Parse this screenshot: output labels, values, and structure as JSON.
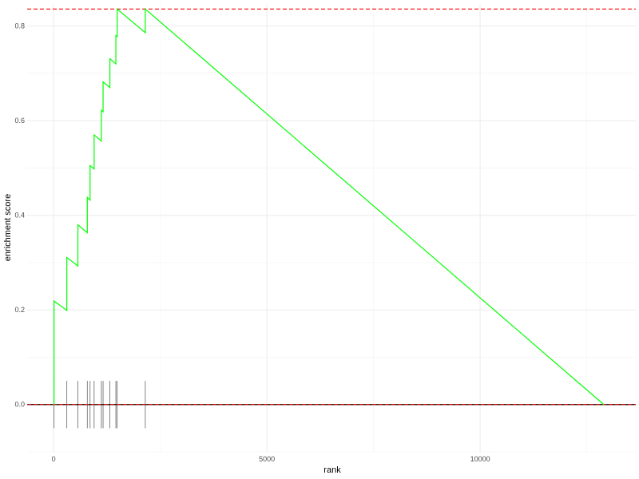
{
  "chart_data": {
    "type": "line",
    "title": "",
    "xlabel": "rank",
    "ylabel": "enrichment score",
    "xlim": [
      -620,
      13650
    ],
    "ylim": [
      -0.1,
      0.845
    ],
    "x_ticks": [
      {
        "value": 0,
        "label": "0"
      },
      {
        "value": 5000,
        "label": "5000"
      },
      {
        "value": 10000,
        "label": "10000"
      }
    ],
    "y_ticks": [
      {
        "value": 0.0,
        "label": "0.0"
      },
      {
        "value": 0.2,
        "label": "0.2"
      },
      {
        "value": 0.4,
        "label": "0.4"
      },
      {
        "value": 0.6,
        "label": "0.6"
      },
      {
        "value": 0.8,
        "label": "0.8"
      }
    ],
    "grid": true,
    "series": [
      {
        "color": "#00ff00",
        "points": [
          [
            0,
            0
          ],
          [
            10,
            0
          ],
          [
            10,
            0.219
          ],
          [
            310,
            0.199
          ],
          [
            310,
            0.311
          ],
          [
            570,
            0.293
          ],
          [
            570,
            0.38
          ],
          [
            790,
            0.363
          ],
          [
            790,
            0.438
          ],
          [
            855,
            0.432
          ],
          [
            855,
            0.505
          ],
          [
            950,
            0.498
          ],
          [
            950,
            0.57
          ],
          [
            1120,
            0.557
          ],
          [
            1120,
            0.622
          ],
          [
            1160,
            0.619
          ],
          [
            1160,
            0.682
          ],
          [
            1320,
            0.67
          ],
          [
            1320,
            0.731
          ],
          [
            1460,
            0.72
          ],
          [
            1460,
            0.78
          ],
          [
            1490,
            0.778
          ],
          [
            1490,
            0.836
          ],
          [
            2150,
            0.786
          ],
          [
            2150,
            0.836
          ],
          [
            12900,
            0
          ]
        ]
      }
    ],
    "rug": {
      "color": "#666666",
      "y_range": [
        -0.05,
        0.05
      ],
      "positions": [
        10,
        310,
        570,
        790,
        855,
        950,
        1120,
        1160,
        1320,
        1460,
        1490,
        2150
      ]
    },
    "reference_lines": [
      {
        "orientation": "horizontal",
        "y": 0,
        "color": "#000000",
        "style": "solid"
      },
      {
        "orientation": "horizontal",
        "y": 0,
        "color": "#ff0000",
        "style": "dashed"
      },
      {
        "orientation": "horizontal",
        "y": 0.836,
        "color": "#ff0000",
        "style": "dashed"
      }
    ]
  }
}
